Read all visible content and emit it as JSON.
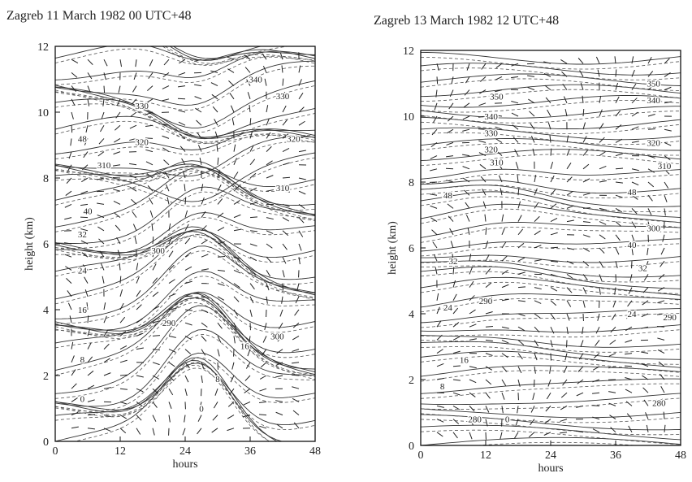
{
  "chart_data": [
    {
      "type": "contour",
      "title": "Zagreb 11 March 1982 00 UTC+48",
      "xlabel": "hours",
      "ylabel": "height (km)",
      "xlim": [
        0,
        48
      ],
      "ylim": [
        0,
        12
      ],
      "xticks": [
        0,
        12,
        24,
        36,
        48
      ],
      "yticks": [
        0,
        2,
        4,
        6,
        8,
        10,
        12
      ],
      "contour_labels": [
        {
          "value": 330,
          "x": 16,
          "y": 10.2
        },
        {
          "value": 320,
          "x": 16,
          "y": 9.1
        },
        {
          "value": 310,
          "x": 9,
          "y": 8.4
        },
        {
          "value": 48,
          "x": 5,
          "y": 9.2
        },
        {
          "value": 40,
          "x": 6,
          "y": 7.0
        },
        {
          "value": 32,
          "x": 5,
          "y": 6.3
        },
        {
          "value": 24,
          "x": 5,
          "y": 5.2
        },
        {
          "value": 16,
          "x": 5,
          "y": 4.0
        },
        {
          "value": 8,
          "x": 5,
          "y": 2.5
        },
        {
          "value": 0,
          "x": 5,
          "y": 1.3
        },
        {
          "value": 300,
          "x": 19,
          "y": 5.8
        },
        {
          "value": 290,
          "x": 21,
          "y": 3.6
        },
        {
          "value": 8,
          "x": 30,
          "y": 1.9
        },
        {
          "value": 0,
          "x": 27,
          "y": 1.0
        },
        {
          "value": 16,
          "x": 35,
          "y": 2.9
        },
        {
          "value": 340,
          "x": 37,
          "y": 11.0
        },
        {
          "value": 330,
          "x": 42,
          "y": 10.5
        },
        {
          "value": 320,
          "x": 44,
          "y": 9.2
        },
        {
          "value": 310,
          "x": 42,
          "y": 7.7
        },
        {
          "value": 300,
          "x": 41,
          "y": 3.2
        }
      ]
    },
    {
      "type": "contour",
      "title": "Zagreb 13 March 1982 12 UTC+48",
      "xlabel": "hours",
      "ylabel": "height (km)",
      "xlim": [
        0,
        48
      ],
      "ylim": [
        0,
        12
      ],
      "xticks": [
        0,
        12,
        24,
        36,
        48
      ],
      "yticks": [
        0,
        2,
        4,
        6,
        8,
        10,
        12
      ],
      "contour_labels": [
        {
          "value": 350,
          "x": 14,
          "y": 10.6
        },
        {
          "value": 340,
          "x": 13,
          "y": 10.0
        },
        {
          "value": 330,
          "x": 13,
          "y": 9.5
        },
        {
          "value": 320,
          "x": 13,
          "y": 9.0
        },
        {
          "value": 310,
          "x": 14,
          "y": 8.6
        },
        {
          "value": 48,
          "x": 5,
          "y": 7.6
        },
        {
          "value": 32,
          "x": 6,
          "y": 5.6
        },
        {
          "value": 290,
          "x": 12,
          "y": 4.4
        },
        {
          "value": 24,
          "x": 5,
          "y": 4.2
        },
        {
          "value": 16,
          "x": 8,
          "y": 2.6
        },
        {
          "value": 8,
          "x": 4,
          "y": 1.8
        },
        {
          "value": 280,
          "x": 10,
          "y": 0.8
        },
        {
          "value": 0,
          "x": 16,
          "y": 0.8
        },
        {
          "value": 48,
          "x": 39,
          "y": 7.7
        },
        {
          "value": 300,
          "x": 43,
          "y": 6.6
        },
        {
          "value": 40,
          "x": 39,
          "y": 6.1
        },
        {
          "value": 32,
          "x": 41,
          "y": 5.4
        },
        {
          "value": 24,
          "x": 39,
          "y": 4.0
        },
        {
          "value": 290,
          "x": 46,
          "y": 3.9
        },
        {
          "value": 280,
          "x": 44,
          "y": 1.3
        },
        {
          "value": 350,
          "x": 43,
          "y": 11.0
        },
        {
          "value": 340,
          "x": 43,
          "y": 10.5
        },
        {
          "value": 320,
          "x": 43,
          "y": 9.2
        },
        {
          "value": 310,
          "x": 45,
          "y": 8.5
        }
      ]
    }
  ]
}
